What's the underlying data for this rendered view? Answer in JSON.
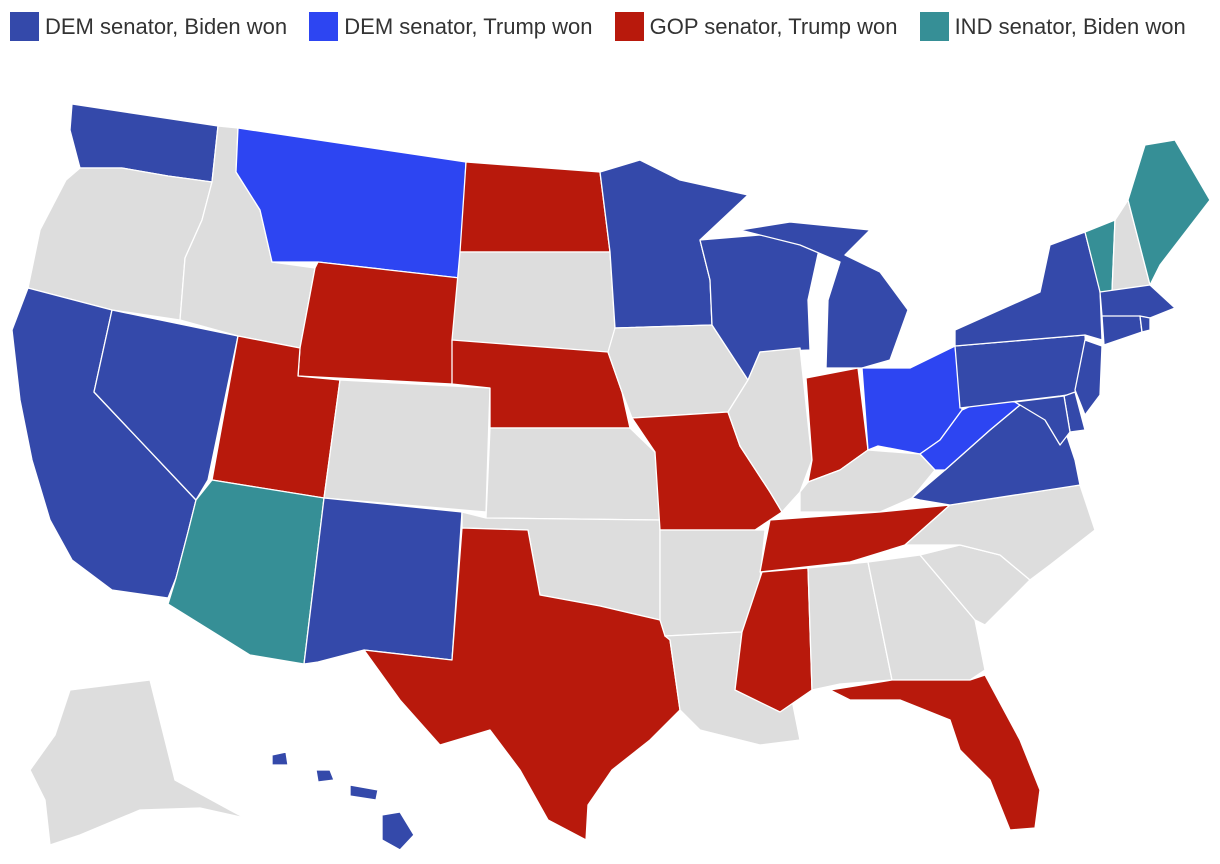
{
  "colors": {
    "dem_biden": "#3449aa",
    "dem_trump": "#2d45f2",
    "gop_trump": "#b8190c",
    "ind_biden": "#368f96",
    "none": "#dddddd"
  },
  "legend": [
    {
      "key": "dem_biden",
      "label": "DEM senator, Biden won"
    },
    {
      "key": "dem_trump",
      "label": "DEM senator, Trump won"
    },
    {
      "key": "gop_trump",
      "label": "GOP senator, Trump won"
    },
    {
      "key": "ind_biden",
      "label": "IND senator, Biden won"
    }
  ],
  "states": {
    "WA": "dem_biden",
    "OR": "none",
    "CA": "dem_biden",
    "NV": "dem_biden",
    "ID": "none",
    "MT": "dem_trump",
    "WY": "gop_trump",
    "UT": "gop_trump",
    "AZ": "ind_biden",
    "CO": "none",
    "NM": "dem_biden",
    "ND": "gop_trump",
    "SD": "none",
    "NE": "gop_trump",
    "KS": "none",
    "OK": "none",
    "TX": "gop_trump",
    "MN": "dem_biden",
    "IA": "none",
    "MO": "gop_trump",
    "AR": "none",
    "LA": "none",
    "WI": "dem_biden",
    "IL": "none",
    "MI": "dem_biden",
    "IN": "gop_trump",
    "OH": "dem_trump",
    "KY": "none",
    "TN": "gop_trump",
    "MS": "gop_trump",
    "AL": "none",
    "GA": "none",
    "FL": "gop_trump",
    "SC": "none",
    "NC": "none",
    "VA": "dem_biden",
    "WV": "dem_trump",
    "PA": "dem_biden",
    "NY": "dem_biden",
    "VT": "ind_biden",
    "NH": "none",
    "ME": "ind_biden",
    "MA": "dem_biden",
    "CT": "dem_biden",
    "RI": "dem_biden",
    "NJ": "dem_biden",
    "DE": "dem_biden",
    "MD": "dem_biden",
    "AK": "none",
    "HI": "dem_biden"
  }
}
